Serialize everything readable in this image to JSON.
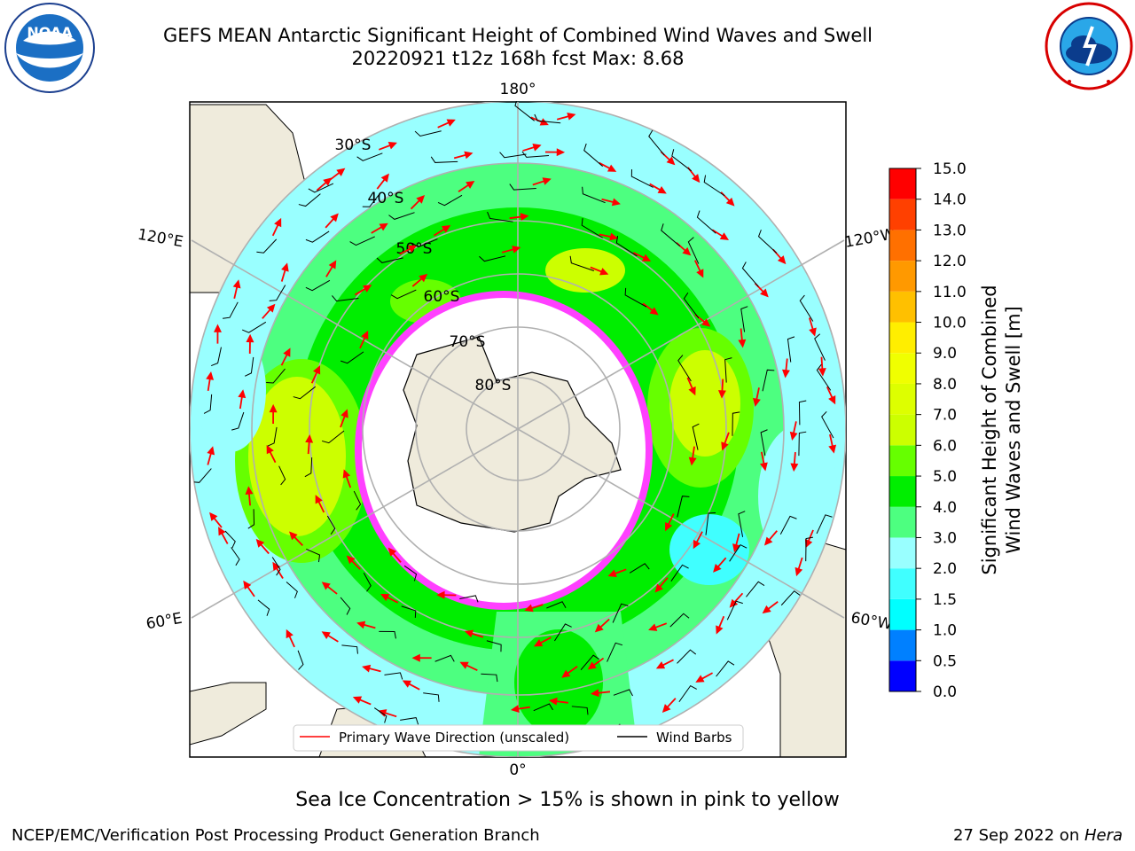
{
  "header": {
    "title_line1": "GEFS MEAN Antarctic Significant Height of Combined Wind Waves and Swell",
    "title_line2": "20220921 t12z 168h fcst   Max: 8.68"
  },
  "logos": {
    "left": "NOAA",
    "right": "NATIONAL WEATHER SERVICE"
  },
  "map": {
    "projection": "south-polar-stereographic",
    "longitude_labels": [
      "180°",
      "120°E",
      "120°W",
      "60°E",
      "60°W",
      "0°"
    ],
    "latitude_labels": [
      "30°S",
      "40°S",
      "50°S",
      "60°S",
      "70°S",
      "80°S"
    ],
    "legend": {
      "primary_wave_label": "Primary Wave Direction (unscaled)",
      "wind_barbs_label": "Wind Barbs",
      "primary_wave_color": "#ff0000",
      "wind_barbs_color": "#000000"
    }
  },
  "colorbar": {
    "title_line1": "Significant Height of Combined",
    "title_line2": "Wind Waves and Swell [m]",
    "ticks": [
      "0.0",
      "0.5",
      "1.0",
      "1.5",
      "2.0",
      "3.0",
      "4.0",
      "5.0",
      "6.0",
      "7.0",
      "8.0",
      "9.0",
      "10.0",
      "11.0",
      "12.0",
      "13.0",
      "14.0",
      "15.0"
    ],
    "colors": [
      "#0000ff",
      "#0080ff",
      "#00ffff",
      "#40ffff",
      "#99ffff",
      "#4dff80",
      "#00ee00",
      "#66ff00",
      "#ccff00",
      "#ddff00",
      "#f0ff00",
      "#ffee00",
      "#ffc000",
      "#ff9900",
      "#ff7000",
      "#ff4000",
      "#ff0000"
    ]
  },
  "footer": {
    "sea_ice_note": "Sea Ice Concentration > 15% is shown in pink to yellow",
    "credit": "NCEP/EMC/Verification Post Processing Product Generation Branch",
    "date_text": "27 Sep 2022 on ",
    "date_machine": "Hera"
  }
}
